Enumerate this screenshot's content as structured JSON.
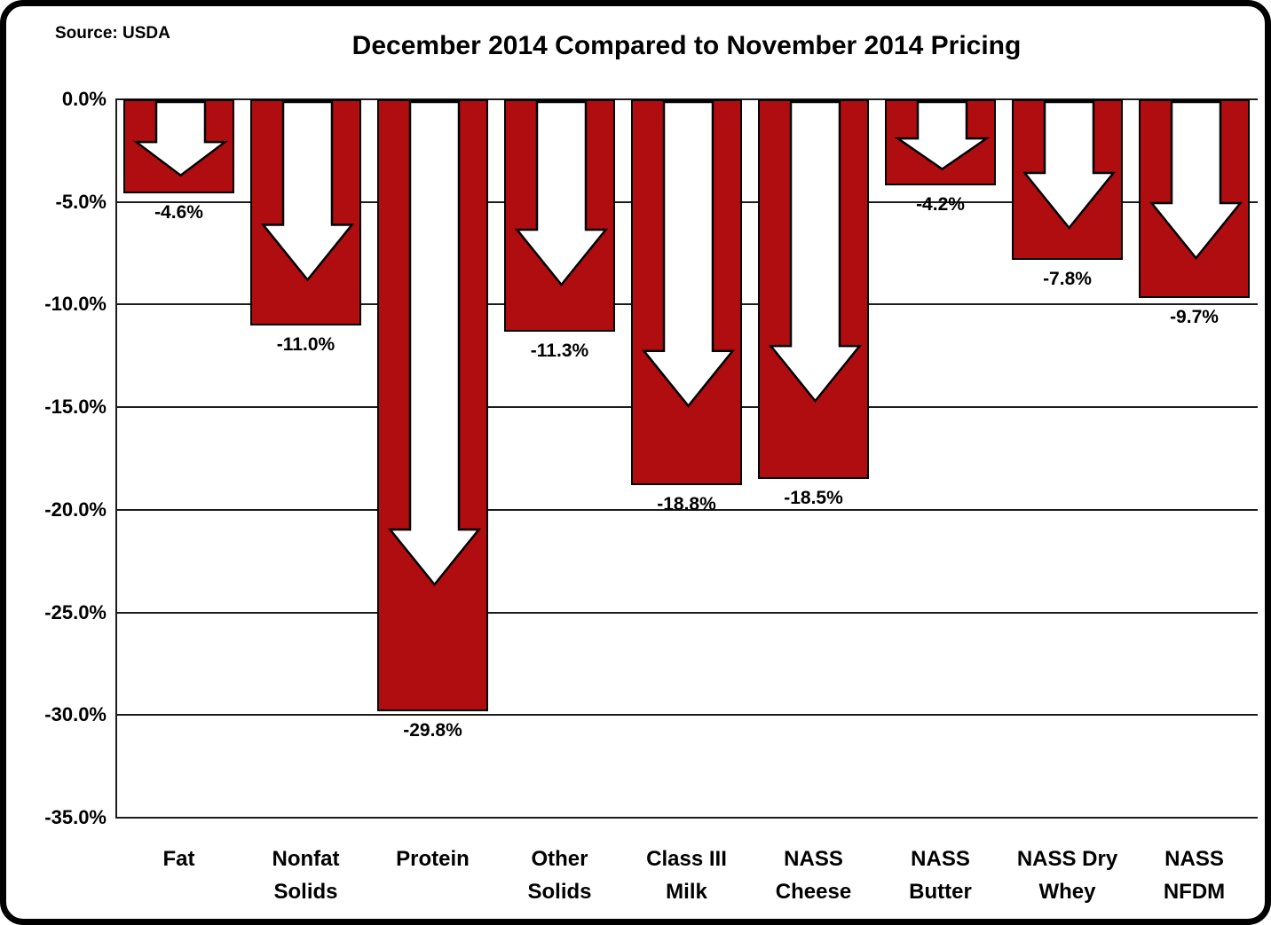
{
  "chart_data": {
    "type": "bar",
    "title": "December 2014 Compared to November 2014 Pricing",
    "source": "Source: USDA",
    "categories": [
      "Fat",
      "Nonfat Solids",
      "Protein",
      "Other Solids",
      "Class III Milk",
      "NASS Cheese",
      "NASS Butter",
      "NASS Dry Whey",
      "NASS NFDM"
    ],
    "category_lines": [
      [
        "Fat"
      ],
      [
        "Nonfat",
        "Solids"
      ],
      [
        "Protein"
      ],
      [
        "Other",
        "Solids"
      ],
      [
        "Class III",
        "Milk"
      ],
      [
        "NASS",
        "Cheese"
      ],
      [
        "NASS",
        "Butter"
      ],
      [
        "NASS Dry",
        "Whey"
      ],
      [
        "NASS",
        "NFDM"
      ]
    ],
    "values": [
      -4.6,
      -11.0,
      -29.8,
      -11.3,
      -18.8,
      -18.5,
      -4.2,
      -7.8,
      -9.7
    ],
    "value_labels": [
      "-4.6%",
      "-11.0%",
      "-29.8%",
      "-11.3%",
      "-18.8%",
      "-18.5%",
      "-4.2%",
      "-7.8%",
      "-9.7%"
    ],
    "xlabel": "",
    "ylabel": "",
    "ylim": [
      -35,
      0
    ],
    "yticks": [
      0,
      -5,
      -10,
      -15,
      -20,
      -25,
      -30,
      -35
    ],
    "ytick_labels": [
      "0.0%",
      "-5.0%",
      "-10.0%",
      "-15.0%",
      "-20.0%",
      "-25.0%",
      "-30.0%",
      "-35.0%"
    ],
    "grid": true,
    "legend": "none",
    "bar_color": "#B00D11",
    "bar_border_color": "#000000",
    "arrow_fill": "#FFFFFF",
    "arrow_stroke": "#000000"
  }
}
